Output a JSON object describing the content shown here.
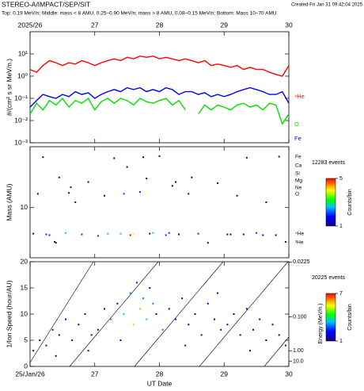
{
  "header": {
    "title": "STEREO-A/IMPACT/SEP/SIT",
    "created": "Created-Fri Jan 31 09:42:04 2025",
    "subtitle": "Top: 0.19 MeV/n; Middle: mass < 8 AMU, 0.25–0.90 MeV/n; mass > 8 AMU, 0.08–0.15 MeV/n; Bottom: Mass 10–70 AMU"
  },
  "chart_data": [
    {
      "type": "line",
      "ylabel": "#/(cm² s sr MeV/n.)",
      "log_y": true,
      "ylim": [
        0.001,
        100
      ],
      "yticks": [
        {
          "value": 0.001,
          "label": "10⁻³"
        },
        {
          "value": 0.01,
          "label": "10⁻²"
        },
        {
          "value": 0.1,
          "label": "10⁻¹"
        },
        {
          "value": 1,
          "label": "10⁰"
        },
        {
          "value": 10,
          "label": "10¹"
        }
      ],
      "xlim": [
        26,
        30
      ],
      "xticks": [
        {
          "value": 26,
          "label": "2025/26"
        },
        27,
        28,
        29,
        30
      ],
      "x": [
        26,
        26.1,
        26.2,
        26.3,
        26.4,
        26.5,
        26.6,
        26.7,
        26.8,
        26.9,
        27,
        27.1,
        27.2,
        27.3,
        27.4,
        27.5,
        27.6,
        27.7,
        27.8,
        27.9,
        28,
        28.1,
        28.2,
        28.3,
        28.4,
        28.5,
        28.6,
        28.7,
        28.8,
        28.9,
        29,
        29.1,
        29.2,
        29.3,
        29.4,
        29.5,
        29.6,
        29.7,
        29.8,
        29.9,
        30
      ],
      "series": [
        {
          "name": "⁴He",
          "color": "#ff0000",
          "values": [
            2,
            1.5,
            3,
            5,
            4,
            3,
            4,
            3.5,
            5,
            4,
            3,
            4,
            5,
            6,
            5,
            7,
            6,
            8,
            7,
            8,
            6,
            7,
            6,
            5,
            6,
            5,
            4,
            5,
            3,
            3.5,
            3,
            2.5,
            3,
            2,
            2.5,
            2,
            2,
            1.5,
            1.2,
            1,
            3
          ]
        },
        {
          "name": "O",
          "color": "#00e000",
          "values": [
            0.02,
            0.06,
            0.03,
            0.08,
            0.05,
            0.1,
            0.04,
            0.08,
            0.06,
            0.1,
            0.03,
            0.07,
            0.1,
            0.06,
            0.1,
            0.08,
            0.05,
            0.1,
            0.07,
            0.06,
            0.08,
            0.1,
            0.05,
            0.08,
            0.03,
            null,
            0.02,
            0.05,
            0.03,
            0.05,
            0.04,
            0.03,
            0.05,
            0.06,
            0.04,
            0.05,
            0.03,
            0.06,
            0.05,
            0.007,
            0.02
          ]
        },
        {
          "name": "Fe",
          "color": "#0000ff",
          "values": [
            0.04,
            0.08,
            0.15,
            0.12,
            0.1,
            0.15,
            0.12,
            0.2,
            0.15,
            0.18,
            0.1,
            0.15,
            0.2,
            0.25,
            0.2,
            0.3,
            0.25,
            0.3,
            0.2,
            0.25,
            0.2,
            0.3,
            0.25,
            0.15,
            0.2,
            0.2,
            0.15,
            0.18,
            0.12,
            0.15,
            0.12,
            0.15,
            0.2,
            0.25,
            0.3,
            0.25,
            0.2,
            0.15,
            0.15,
            0.2,
            0.06
          ]
        }
      ]
    },
    {
      "type": "scatter",
      "ylabel": "Mass (AMU)",
      "log_y": true,
      "ylim": [
        1.8,
        80
      ],
      "yticks": [
        10
      ],
      "xlim": [
        26,
        30
      ],
      "species": [
        "Fe",
        "Ca",
        "Si",
        "Mg",
        "Ne",
        "O",
        "⁴He",
        "³He"
      ],
      "events": "12283 events",
      "zlabel": "Counts/bin",
      "zlim": [
        1,
        5
      ],
      "zticks": [
        1,
        5
      ],
      "x": [
        26.05,
        26.12,
        26.2,
        26.3,
        26.38,
        26.45,
        26.55,
        26.63,
        26.7,
        26.8,
        26.9,
        27.05,
        27.15,
        27.3,
        27.4,
        27.5,
        27.6,
        27.7,
        27.8,
        27.9,
        28,
        28.1,
        28.2,
        28.3,
        28.45,
        28.6,
        28.75,
        28.9,
        29.05,
        29.2,
        29.35,
        29.5,
        29.65,
        29.8,
        29.95,
        26.25,
        26.6,
        27.2,
        27.55,
        27.75,
        28.15,
        28.5,
        29.1,
        29.6,
        26.4,
        27.45,
        27.85,
        28.25,
        29.3,
        29.85
      ],
      "values": [
        4.1,
        16,
        56,
        3.9,
        3.1,
        28,
        4.2,
        20,
        12,
        4,
        24,
        3.8,
        15,
        54,
        4.1,
        40,
        4,
        17,
        27,
        4.2,
        58,
        3.9,
        21,
        4,
        16,
        4.1,
        3,
        23,
        4,
        15,
        55,
        4.2,
        12,
        3.9,
        3.1,
        4,
        16.5,
        4.1,
        3.9,
        56,
        4.2,
        28,
        4,
        3.9,
        3,
        16,
        4.1,
        24,
        4,
        57
      ],
      "z": [
        1,
        1,
        1,
        2,
        1,
        1,
        3,
        1,
        1,
        2,
        1,
        2,
        1,
        1,
        3,
        1,
        4,
        2,
        1,
        3,
        1,
        2,
        1,
        1,
        1,
        2,
        1,
        1,
        1,
        1,
        1,
        2,
        1,
        1,
        1,
        2,
        1,
        3,
        5,
        1,
        2,
        1,
        1,
        1,
        1,
        2,
        1,
        1,
        1,
        1
      ]
    },
    {
      "type": "scatter",
      "ylabel": "1/Ion Speed (hour/AU)",
      "ylim": [
        0,
        20
      ],
      "yticks": [
        0,
        5,
        10,
        15,
        20
      ],
      "xlim": [
        26,
        30
      ],
      "xticks": [
        {
          "value": 26,
          "label": "25/Jan/26"
        },
        27,
        28,
        29,
        30
      ],
      "xlabel": "UT Date",
      "y2label": "Energy (MeV/n.)",
      "y2ticks": [
        {
          "value": 0.0225,
          "label": "0.0225"
        },
        {
          "value": 0.1,
          "label": "0.100"
        },
        {
          "value": 1,
          "label": "1.00"
        },
        {
          "value": 10,
          "label": "10.0"
        }
      ],
      "events": "20225 events",
      "zlabel": "Counts/bin",
      "zlim": [
        1,
        7
      ],
      "zticks": [
        1,
        7
      ],
      "x": [
        26.05,
        26.15,
        26.25,
        26.35,
        26.45,
        26.55,
        26.65,
        26.75,
        26.85,
        26.95,
        27.05,
        27.15,
        27.25,
        27.35,
        27.45,
        27.55,
        27.6,
        27.65,
        27.7,
        27.75,
        27.8,
        27.85,
        27.9,
        27.95,
        28.05,
        28.15,
        28.25,
        28.35,
        28.45,
        28.55,
        28.65,
        28.75,
        28.85,
        28.95,
        29.05,
        29.15,
        29.25,
        29.35,
        29.45,
        29.55,
        29.65,
        29.75,
        29.85,
        29.95,
        26.4,
        26.9,
        27.4,
        28.4,
        28.9,
        29.4
      ],
      "values": [
        3,
        5,
        4,
        7,
        6,
        9,
        5,
        8,
        10,
        6,
        7,
        11,
        9,
        12,
        10,
        14,
        8,
        16,
        11,
        13,
        9,
        15,
        12,
        10,
        7,
        11,
        9,
        13,
        8,
        10,
        6,
        12,
        9,
        7,
        8,
        10,
        6,
        11,
        7,
        9,
        5,
        8,
        6,
        4,
        2,
        3,
        5,
        4,
        14,
        3
      ],
      "z": [
        1,
        1,
        1,
        2,
        1,
        2,
        1,
        1,
        2,
        1,
        2,
        1,
        3,
        2,
        4,
        3,
        5,
        2,
        6,
        3,
        4,
        2,
        3,
        2,
        3,
        1,
        2,
        1,
        2,
        1,
        1,
        2,
        1,
        1,
        2,
        1,
        1,
        2,
        1,
        1,
        1,
        1,
        1,
        1,
        1,
        1,
        2,
        1,
        1,
        1
      ]
    }
  ]
}
